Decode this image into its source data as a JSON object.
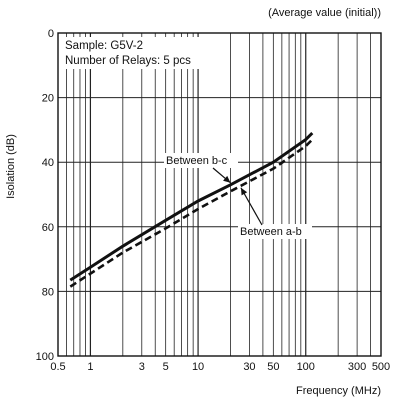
{
  "chart_data": {
    "type": "line",
    "header_note": "(Average value (initial))",
    "xlabel": "Frequency (MHz)",
    "ylabel": "Isolation (dB)",
    "x_scale": "log",
    "xlim": [
      0.5,
      500
    ],
    "ylim": [
      0,
      100
    ],
    "y_inverted": true,
    "grid": true,
    "x_ticks": [
      0.5,
      1,
      3,
      5,
      10,
      30,
      50,
      100,
      300,
      500
    ],
    "x_tick_labels": [
      "0.5",
      "1",
      "3",
      "5",
      "10",
      "30",
      "50",
      "100",
      "300",
      "500"
    ],
    "y_ticks": [
      0,
      20,
      40,
      60,
      80,
      100
    ],
    "y_tick_labels": [
      "0",
      "20",
      "40",
      "60",
      "80",
      "100"
    ],
    "annotations": [
      "Sample: G5V-2",
      "Number of Relays: 5 pcs"
    ],
    "series": [
      {
        "name": "Between b-c",
        "style": "solid",
        "x": [
          0.65,
          1,
          2,
          5,
          10,
          20,
          50,
          100,
          115
        ],
        "y": [
          76.5,
          72.5,
          66,
          58,
          52,
          47,
          40,
          33,
          31
        ]
      },
      {
        "name": "Between a-b",
        "style": "dashed",
        "x": [
          0.65,
          1,
          2,
          5,
          10,
          20,
          50,
          100,
          115
        ],
        "y": [
          78.5,
          74.5,
          68,
          60.5,
          54.5,
          49,
          42,
          35,
          33
        ]
      }
    ]
  }
}
